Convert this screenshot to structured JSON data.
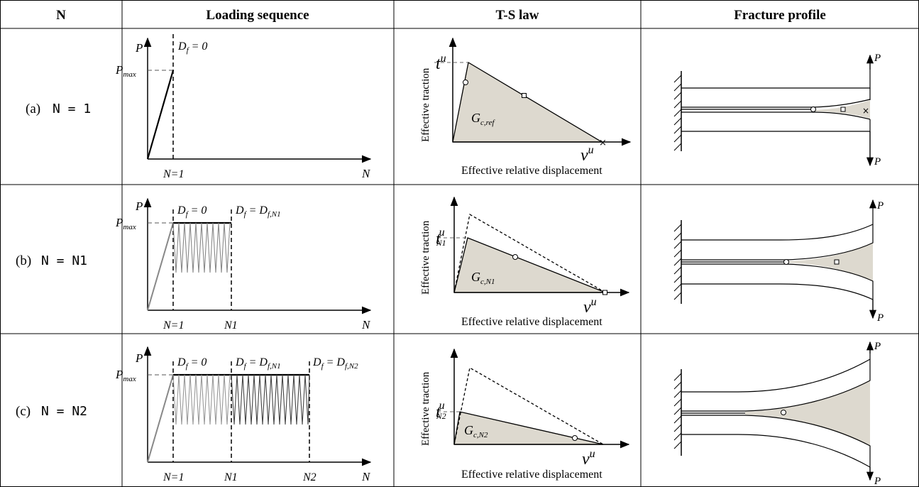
{
  "header": {
    "col_n": "N",
    "col_loading": "Loading sequence",
    "col_ts": "T-S law",
    "col_profile": "Fracture profile"
  },
  "rows": [
    {
      "label_prefix": "(a)",
      "label_eq": "N = 1",
      "loading": {
        "p_axis": "P",
        "pmax_main": "P",
        "pmax_sub": "max",
        "n_axis": "N",
        "df_labels": [
          "D",
          "f",
          " = 0"
        ],
        "x_ticks": [
          "N=1"
        ]
      },
      "ts": {
        "ylabel": "Effective traction",
        "xlabel": "Effective relative displacement",
        "t_main": "t",
        "t_sup": "u",
        "t_sub": "",
        "v_main": "v",
        "v_sup": "u",
        "g_main": "G",
        "g_sub": "c,ref"
      },
      "profile": {
        "top_load": "P",
        "bottom_load": "P"
      }
    },
    {
      "label_prefix": "(b)",
      "label_eq": "N = N1",
      "loading": {
        "p_axis": "P",
        "pmax_main": "P",
        "pmax_sub": "max",
        "n_axis": "N",
        "df1": "D",
        "df1_sub": "f",
        "df1_val": " = 0",
        "df2": "D",
        "df2_sub": "f",
        "df2_eq": " = D",
        "df2_val_sub": "f,N1",
        "x_ticks": [
          "N=1",
          "N1"
        ]
      },
      "ts": {
        "ylabel": "Effective traction",
        "xlabel": "Effective relative displacement",
        "t_main": "t",
        "t_sup": "u",
        "t_sub": "N1",
        "v_main": "v",
        "v_sup": "u",
        "g_main": "G",
        "g_sub": "c,N1"
      },
      "profile": {
        "top_load": "P",
        "bottom_load": "P"
      }
    },
    {
      "label_prefix": "(c)",
      "label_eq": "N = N2",
      "loading": {
        "p_axis": "P",
        "pmax_main": "P",
        "pmax_sub": "max",
        "n_axis": "N",
        "df1": "D",
        "df1_sub": "f",
        "df1_val": " = 0",
        "df2": "D",
        "df2_sub": "f",
        "df2_eq": " = D",
        "df2_val_sub": "f,N1",
        "df3": "D",
        "df3_sub": "f",
        "df3_eq": " = D",
        "df3_val_sub": "f,N2",
        "x_ticks": [
          "N=1",
          "N1",
          "N2"
        ]
      },
      "ts": {
        "ylabel": "Effective traction",
        "xlabel": "Effective relative displacement",
        "t_main": "t",
        "t_sup": "u",
        "t_sub": "N2",
        "v_main": "v",
        "v_sup": "u",
        "g_main": "G",
        "g_sub": "c,N2"
      },
      "profile": {
        "top_load": "P",
        "bottom_load": "P"
      }
    }
  ],
  "colors": {
    "grid": "#000000",
    "fill": "#ddd9cf",
    "dash": "#666666",
    "grey_line": "#888888"
  }
}
